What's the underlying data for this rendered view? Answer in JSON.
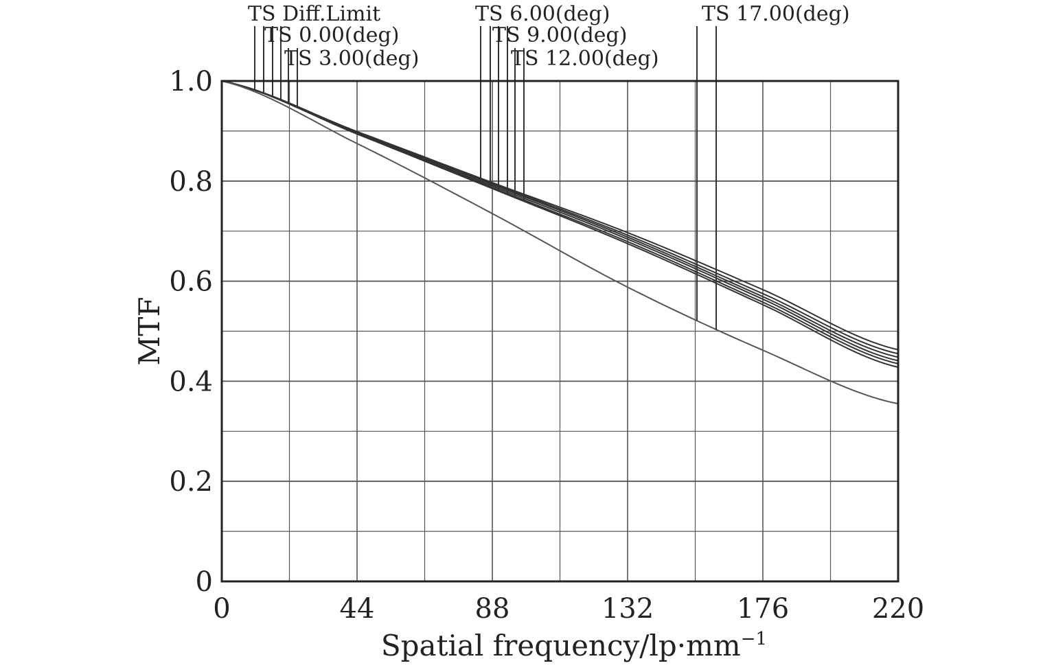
{
  "chart_data": {
    "type": "line",
    "title": "",
    "xlabel": "Spatial frequency/lp·mm",
    "xlabel_superscript": "−1",
    "ylabel": "MTF",
    "xlim": [
      0,
      220
    ],
    "ylim": [
      0,
      1.0
    ],
    "x_ticks": [
      0,
      44,
      88,
      132,
      176,
      220
    ],
    "x_tick_labels": [
      "0",
      "44",
      "88",
      "132",
      "176",
      "220"
    ],
    "y_ticks": [
      0,
      0.2,
      0.4,
      0.6,
      0.8,
      1.0
    ],
    "y_tick_labels": [
      "0",
      "0.2",
      "0.4",
      "0.6",
      "0.8",
      "1.0"
    ],
    "grid": true,
    "x_minor_grid_step": 22,
    "y_minor_grid_step": 0.1,
    "colors": {
      "axis": "#222222",
      "grid": "#555555",
      "curves": "#333333",
      "degraded_curve": "#555555"
    },
    "series": [
      {
        "name": "TS Diff.Limit",
        "x": [
          0,
          44,
          88,
          132,
          176,
          220
        ],
        "y": [
          1.0,
          0.899,
          0.797,
          0.697,
          0.583,
          0.463
        ]
      },
      {
        "name": "TS 0.00(deg)",
        "x": [
          0,
          44,
          88,
          132,
          176,
          220
        ],
        "y": [
          1.0,
          0.898,
          0.795,
          0.692,
          0.575,
          0.455
        ]
      },
      {
        "name": "TS 3.00(deg)",
        "x": [
          0,
          44,
          88,
          132,
          176,
          220
        ],
        "y": [
          1.0,
          0.897,
          0.793,
          0.688,
          0.569,
          0.448
        ]
      },
      {
        "name": "TS 6.00(deg)",
        "x": [
          0,
          44,
          88,
          132,
          176,
          220
        ],
        "y": [
          1.0,
          0.896,
          0.79,
          0.684,
          0.564,
          0.441
        ]
      },
      {
        "name": "TS 9.00(deg)",
        "x": [
          0,
          44,
          88,
          132,
          176,
          220
        ],
        "y": [
          1.0,
          0.895,
          0.787,
          0.679,
          0.558,
          0.435
        ]
      },
      {
        "name": "TS 12.00(deg)",
        "x": [
          0,
          44,
          88,
          132,
          176,
          220
        ],
        "y": [
          1.0,
          0.894,
          0.785,
          0.675,
          0.553,
          0.428
        ]
      },
      {
        "name": "TS 17.00(deg)",
        "x": [
          0,
          44,
          88,
          132,
          176,
          220
        ],
        "y": [
          1.0,
          0.875,
          0.735,
          0.588,
          0.462,
          0.355
        ]
      }
    ],
    "legend_labels": [
      {
        "text": "TS Diff.Limit"
      },
      {
        "text": "TS 0.00(deg)"
      },
      {
        "text": "TS 3.00(deg)"
      },
      {
        "text": "TS 6.00(deg)"
      },
      {
        "text": "TS 9.00(deg)"
      },
      {
        "text": "TS 12.00(deg)"
      },
      {
        "text": "TS 17.00(deg)"
      }
    ]
  }
}
